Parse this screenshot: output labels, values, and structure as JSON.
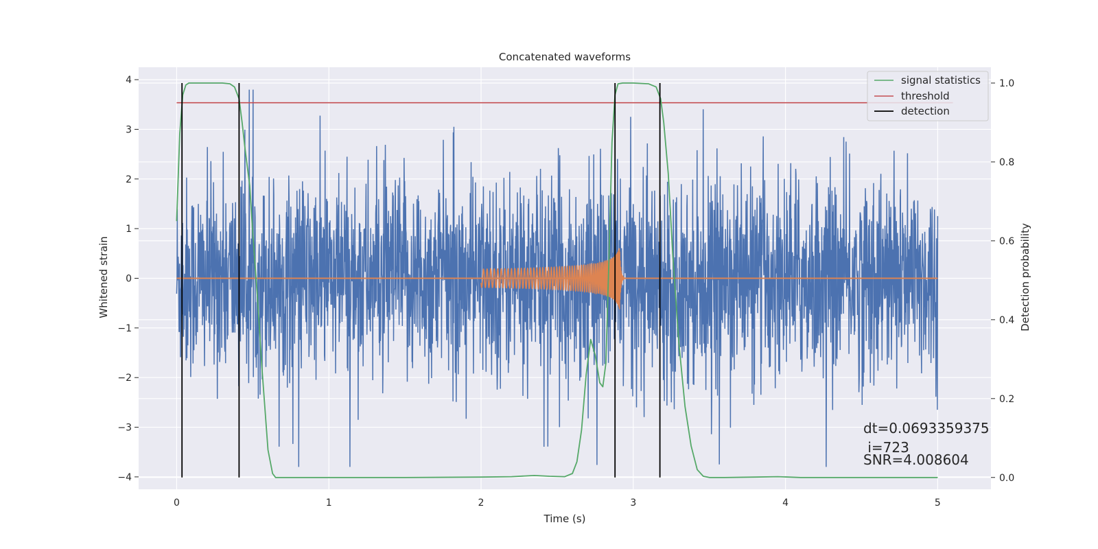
{
  "chart_data": {
    "type": "line",
    "title": "Concatenated waveforms",
    "xlabel": "Time (s)",
    "ylabel": "Whitened strain",
    "ylabel_right": "Detection probability",
    "xlim": [
      -0.25,
      5.35
    ],
    "ylim": [
      -4.25,
      4.25
    ],
    "ylim_right": [
      -0.03,
      1.04
    ],
    "x_ticks": [
      "0",
      "1",
      "2",
      "3",
      "4",
      "5"
    ],
    "y_ticks": [
      "−4",
      "−3",
      "−2",
      "−1",
      "0",
      "1",
      "2",
      "3",
      "4"
    ],
    "y_ticks_right": [
      "0.0",
      "0.2",
      "0.4",
      "0.6",
      "0.8",
      "1.0"
    ],
    "grid": true,
    "background": "#eaeaf2",
    "legend_position": "top-right",
    "series": [
      {
        "name": "signal statistics",
        "color": "#55a868",
        "axis": "right",
        "x": [
          0.0,
          0.02,
          0.04,
          0.06,
          0.08,
          0.1,
          0.15,
          0.2,
          0.3,
          0.35,
          0.38,
          0.41,
          0.43,
          0.45,
          0.48,
          0.5,
          0.53,
          0.56,
          0.6,
          0.63,
          0.65,
          0.7,
          1.0,
          1.5,
          2.0,
          2.2,
          2.35,
          2.45,
          2.55,
          2.6,
          2.63,
          2.66,
          2.69,
          2.72,
          2.75,
          2.78,
          2.8,
          2.82,
          2.84,
          2.86,
          2.88,
          2.9,
          2.93,
          3.0,
          3.1,
          3.15,
          3.18,
          3.2,
          3.23,
          3.26,
          3.3,
          3.34,
          3.38,
          3.42,
          3.46,
          3.5,
          3.6,
          3.8,
          3.95,
          4.1,
          4.5,
          5.0
        ],
        "y": [
          0.65,
          0.87,
          0.97,
          0.995,
          1.0,
          1.0,
          1.0,
          1.0,
          1.0,
          0.998,
          0.99,
          0.96,
          0.9,
          0.83,
          0.74,
          0.62,
          0.46,
          0.28,
          0.07,
          0.01,
          0.0,
          0.0,
          0.0,
          0.0,
          0.001,
          0.002,
          0.005,
          0.003,
          0.002,
          0.01,
          0.04,
          0.12,
          0.26,
          0.35,
          0.31,
          0.24,
          0.23,
          0.29,
          0.55,
          0.85,
          0.97,
          0.998,
          1.0,
          1.0,
          0.998,
          0.99,
          0.96,
          0.9,
          0.77,
          0.56,
          0.34,
          0.18,
          0.08,
          0.02,
          0.003,
          0.0,
          0.0,
          0.001,
          0.002,
          0.0,
          0.0,
          0.0
        ]
      },
      {
        "name": "threshold",
        "color": "#c44e52",
        "axis": "right",
        "x": [
          0.0,
          5.1
        ],
        "y": [
          0.95,
          0.95
        ]
      },
      {
        "name": "detection",
        "color": "#000000",
        "axis": "right",
        "x_positions": [
          0.035,
          0.41,
          2.88,
          3.175
        ],
        "y_range": [
          0.0,
          1.0
        ]
      },
      {
        "name": "",
        "color": "#4c72b0",
        "axis": "left",
        "kind": "noise",
        "x_range": [
          0.0,
          5.0
        ],
        "y_range": [
          -3.8,
          3.8
        ]
      },
      {
        "name": "",
        "color": "#dd8452",
        "axis": "left",
        "kind": "chirp",
        "x_range": [
          2.0,
          2.95
        ],
        "peak_amplitude": 0.6
      }
    ],
    "annotations": [
      "dt=0.0693359375",
      " i=723",
      "SNR=4.008604"
    ]
  }
}
